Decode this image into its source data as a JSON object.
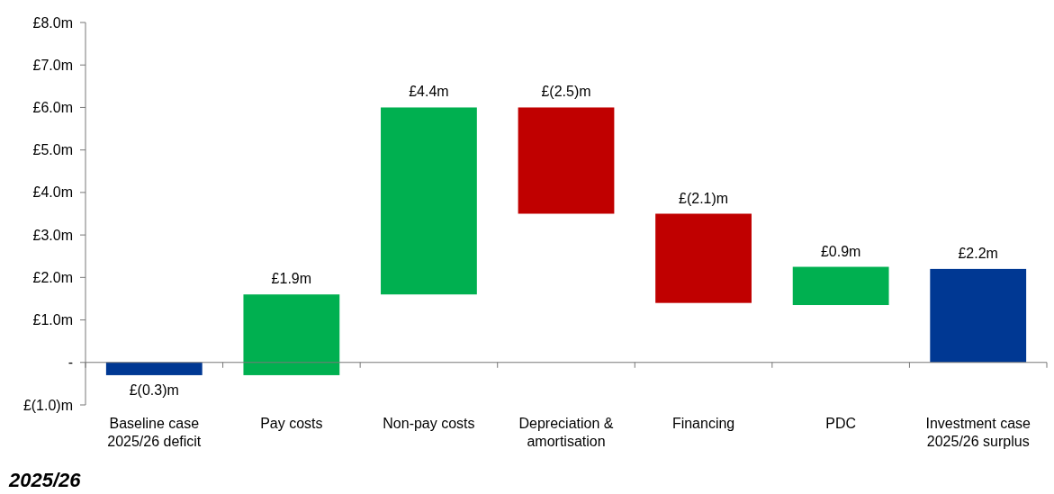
{
  "chart_data": {
    "type": "bar",
    "categories": [
      "Baseline case\n2025/26 deficit",
      "Pay costs",
      "Non-pay costs",
      "Depreciation &\namortisation",
      "Financing",
      "PDC",
      "Investment case\n2025/26 surplus"
    ],
    "values": [
      -0.3,
      1.9,
      4.4,
      -2.5,
      -2.1,
      0.9,
      2.2
    ],
    "base": [
      0,
      -0.3,
      1.6,
      6.0,
      3.5,
      1.35,
      0
    ],
    "colors": [
      "#003893",
      "#00b050",
      "#00b050",
      "#c00000",
      "#c00000",
      "#00b050",
      "#003893"
    ],
    "value_labels": [
      "£(0.3)m",
      "£1.9m",
      "£4.4m",
      "£(2.5)m",
      "£(2.1)m",
      "£0.9m",
      "£2.2m"
    ],
    "ylim": [
      -1,
      8
    ],
    "yticks": [
      {
        "value": -1,
        "label": "£(1.0)m"
      },
      {
        "value": 0,
        "label": "-"
      },
      {
        "value": 1,
        "label": "£1.0m"
      },
      {
        "value": 2,
        "label": "£2.0m"
      },
      {
        "value": 3,
        "label": "£3.0m"
      },
      {
        "value": 4,
        "label": "£4.0m"
      },
      {
        "value": 5,
        "label": "£5.0m"
      },
      {
        "value": 6,
        "label": "£6.0m"
      },
      {
        "value": 7,
        "label": "£7.0m"
      },
      {
        "value": 8,
        "label": "£8.0m"
      }
    ],
    "annotations": [
      "2025/26"
    ]
  }
}
